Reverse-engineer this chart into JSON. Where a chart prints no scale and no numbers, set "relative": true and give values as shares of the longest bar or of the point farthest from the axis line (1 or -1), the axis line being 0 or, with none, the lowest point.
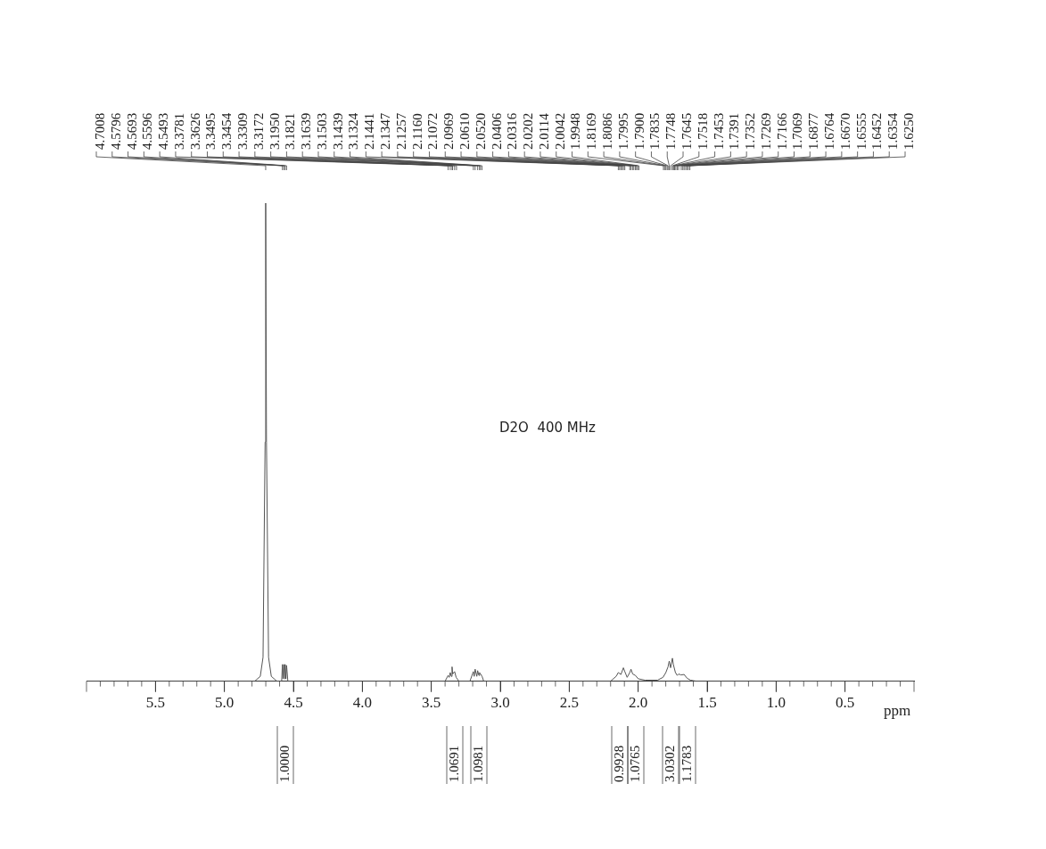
{
  "chart_data": {
    "type": "line",
    "relative": true,
    "xlabel": "ppm",
    "legend": false,
    "grid": false,
    "marker": "none",
    "line_style": "solid",
    "xlim": [
      6.0,
      0
    ],
    "xticks": [
      5.5,
      {
        "value": 5.0,
        "label": "5.0"
      },
      4.5,
      {
        "value": 4.0,
        "label": "4.0"
      },
      3.5,
      {
        "value": 3.0,
        "label": "3.0"
      },
      2.5,
      {
        "value": 2.0,
        "label": "2.0"
      },
      1.5,
      {
        "value": 1.0,
        "label": "1.0"
      },
      0.5
    ],
    "series": [
      {
        "color": "#555555",
        "x": [
          6.0,
          4.78,
          4.74,
          4.72,
          4.705,
          4.7008,
          4.695,
          4.68,
          4.66,
          4.62,
          4.585,
          4.5796,
          4.575,
          4.5693,
          4.564,
          4.5596,
          4.554,
          4.5493,
          4.54,
          3.4,
          3.3781,
          3.37,
          3.3626,
          3.355,
          3.3495,
          3.345,
          3.3309,
          3.32,
          3.3,
          3.22,
          3.195,
          3.189,
          3.1821,
          3.17,
          3.1639,
          3.155,
          3.1503,
          3.132,
          3.12,
          2.2,
          2.16,
          2.1441,
          2.125,
          2.1072,
          2.0969,
          2.08,
          2.061,
          2.052,
          2.04,
          2.02,
          2.0,
          1.95,
          1.86,
          1.82,
          1.7995,
          1.7835,
          1.7748,
          1.765,
          1.7518,
          1.745,
          1.73,
          1.7166,
          1.7069,
          1.69,
          1.667,
          1.645,
          1.62,
          1.58,
          0
        ],
        "values": [
          0,
          0,
          0.01,
          0.05,
          0.5,
          1,
          0.5,
          0.05,
          0.01,
          0,
          0,
          0.035,
          0.005,
          0.035,
          0.005,
          0.035,
          0.005,
          0.033,
          0,
          0,
          0.012,
          0.008,
          0.018,
          0.01,
          0.03,
          0.015,
          0.02,
          0.008,
          0,
          0,
          0.02,
          0.01,
          0.025,
          0.01,
          0.022,
          0.012,
          0.018,
          0.01,
          0,
          0,
          0.01,
          0.018,
          0.014,
          0.028,
          0.02,
          0.008,
          0.018,
          0.025,
          0.015,
          0.012,
          0.005,
          0.002,
          0.002,
          0.008,
          0.018,
          0.03,
          0.042,
          0.028,
          0.048,
          0.035,
          0.018,
          0.012,
          0.015,
          0.013,
          0.014,
          0.006,
          0.002,
          0,
          0
        ]
      }
    ],
    "annotations": [
      "D2O  400 MHz",
      {
        "text": "4.7008",
        "x": 4.7008
      },
      {
        "text": "4.5796",
        "x": 4.5796
      },
      {
        "text": "4.5693",
        "x": 4.5693
      },
      {
        "text": "4.5596",
        "x": 4.5596
      },
      {
        "text": "4.5493",
        "x": 4.5493
      },
      {
        "text": "3.3781",
        "x": 3.3781
      },
      {
        "text": "3.3626",
        "x": 3.3626
      },
      {
        "text": "3.3495",
        "x": 3.3495
      },
      {
        "text": "3.3454",
        "x": 3.3454
      },
      {
        "text": "3.3309",
        "x": 3.3309
      },
      {
        "text": "3.3172",
        "x": 3.3172
      },
      {
        "text": "3.1950",
        "x": 3.195
      },
      {
        "text": "3.1821",
        "x": 3.1821
      },
      {
        "text": "3.1639",
        "x": 3.1639
      },
      {
        "text": "3.1503",
        "x": 3.1503
      },
      {
        "text": "3.1439",
        "x": 3.1439
      },
      {
        "text": "3.1324",
        "x": 3.1324
      },
      {
        "text": "2.1441",
        "x": 2.1441
      },
      {
        "text": "2.1347",
        "x": 2.1347
      },
      {
        "text": "2.1257",
        "x": 2.1257
      },
      {
        "text": "2.1160",
        "x": 2.116
      },
      {
        "text": "2.1072",
        "x": 2.1072
      },
      {
        "text": "2.0969",
        "x": 2.0969
      },
      {
        "text": "2.0610",
        "x": 2.061
      },
      {
        "text": "2.0520",
        "x": 2.052
      },
      {
        "text": "2.0406",
        "x": 2.0406
      },
      {
        "text": "2.0316",
        "x": 2.0316
      },
      {
        "text": "2.0202",
        "x": 2.0202
      },
      {
        "text": "2.0114",
        "x": 2.0114
      },
      {
        "text": "2.0042",
        "x": 2.0042
      },
      {
        "text": "1.9948",
        "x": 1.9948
      },
      {
        "text": "1.8169",
        "x": 1.8169
      },
      {
        "text": "1.8086",
        "x": 1.8086
      },
      {
        "text": "1.7995",
        "x": 1.7995
      },
      {
        "text": "1.7900",
        "x": 1.79
      },
      {
        "text": "1.7835",
        "x": 1.7835
      },
      {
        "text": "1.7748",
        "x": 1.7748
      },
      {
        "text": "1.7645",
        "x": 1.7645
      },
      {
        "text": "1.7518",
        "x": 1.7518
      },
      {
        "text": "1.7453",
        "x": 1.7453
      },
      {
        "text": "1.7391",
        "x": 1.7391
      },
      {
        "text": "1.7352",
        "x": 1.7352
      },
      {
        "text": "1.7269",
        "x": 1.7269
      },
      {
        "text": "1.7166",
        "x": 1.7166
      },
      {
        "text": "1.7069",
        "x": 1.7069
      },
      {
        "text": "1.6877",
        "x": 1.6877
      },
      {
        "text": "1.6764",
        "x": 1.6764
      },
      {
        "text": "1.6670",
        "x": 1.667
      },
      {
        "text": "1.6555",
        "x": 1.6555
      },
      {
        "text": "1.6452",
        "x": 1.6452
      },
      {
        "text": "1.6354",
        "x": 1.6354
      },
      {
        "text": "1.6250",
        "x": 1.625
      },
      "1.0000",
      "1.0691",
      "1.0981",
      "0.9928",
      "1.0765",
      "3.0302",
      "1.1783"
    ]
  }
}
